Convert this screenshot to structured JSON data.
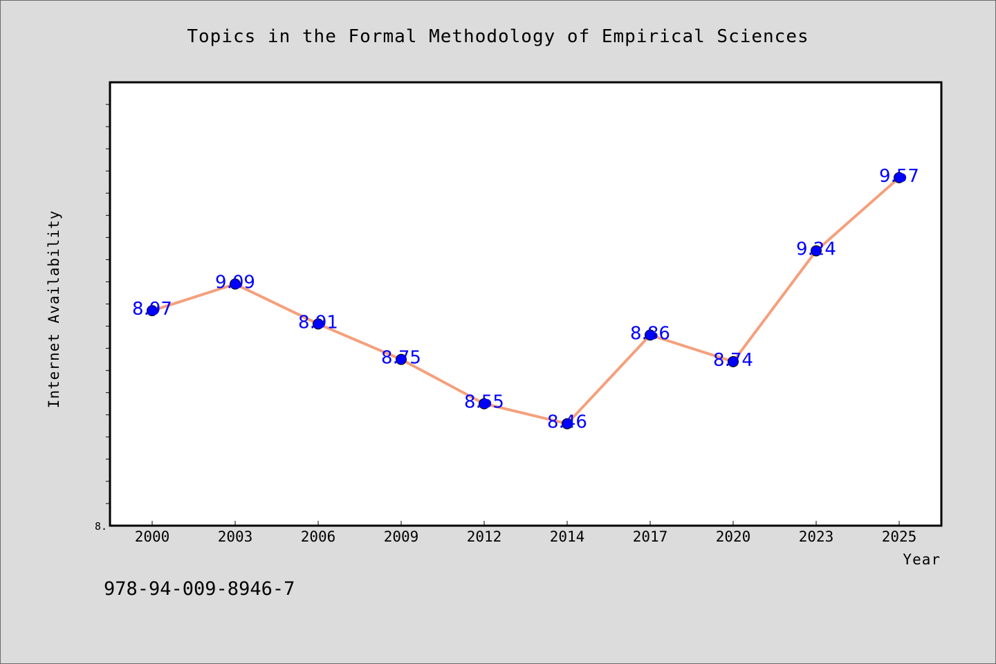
{
  "chart_data": {
    "type": "line",
    "title": "Topics in the Formal Methodology of Empirical Sciences",
    "xlabel": "Year",
    "ylabel": "Internet Availability",
    "categories": [
      "2000",
      "2003",
      "2006",
      "2009",
      "2012",
      "2014",
      "2017",
      "2020",
      "2023",
      "2025"
    ],
    "series": [
      {
        "values": [
          8.97,
          9.09,
          8.91,
          8.75,
          8.55,
          8.46,
          8.86,
          8.74,
          9.24,
          9.57
        ]
      }
    ],
    "data_labels": [
      "8.97",
      "9.09",
      "8.91",
      "8.75",
      "8.55",
      "8.46",
      "8.86",
      "8.74",
      "9.24",
      "9.57"
    ],
    "y_tick_label_shown": "8.",
    "ylim": [
      8.0,
      10.0
    ],
    "y_minor_tick_step": 0.1,
    "grid": false,
    "legend": "none",
    "line_color": "#f4a07c",
    "marker_color": "#0000ff",
    "data_label_color": "#0000ff"
  },
  "footnote": "978-94-009-8946-7"
}
